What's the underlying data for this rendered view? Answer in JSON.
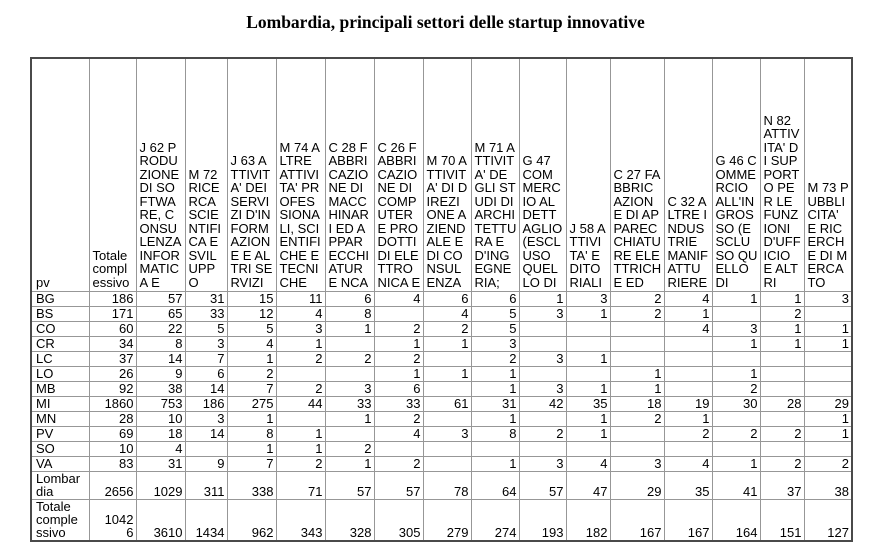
{
  "title": "Lombardia, principali settori delle startup innovative",
  "table": {
    "corner_label": "pv",
    "columns": [
      {
        "id": "totale",
        "label": "Totale complessivo"
      },
      {
        "id": "j62",
        "label": "J 62 PRODUZIONE DI SOFTWARE, CONSULENZA INFORMATICA E"
      },
      {
        "id": "m72",
        "label": "M 72 RICERCA SCIENTIFICA E SVILUPPO"
      },
      {
        "id": "j63",
        "label": "J 63 ATTIVITA' DEI SERVIZI D'INFORMAZIONE E ALTRI SERVIZI"
      },
      {
        "id": "m74",
        "label": "M 74 ALTRE ATTIVITA' PROFESSIONALI, SCIENTIFICHE E TECNICHE"
      },
      {
        "id": "c28",
        "label": "C 28 FABBRICAZIONE DI MACCHINARI ED APPARECCHIATURE NCA"
      },
      {
        "id": "c26",
        "label": "C 26 FABBRICAZIONE DI COMPUTER E PRODOTTI DI ELETTRONICA E"
      },
      {
        "id": "m70",
        "label": "M 70 ATTIVITA' DI DIREZIONE AZIENDALE E DI CONSULENZA"
      },
      {
        "id": "m71",
        "label": "M 71 ATTIVITA' DEGLI STUDI DI ARCHITETTURA E D'INGEGNERIA;"
      },
      {
        "id": "g47",
        "label": "G 47 COMMERCIO AL DETTAGLIO (ESCLUSO QUELLO DI"
      },
      {
        "id": "j58",
        "label": "J 58 ATTIVITA' EDITORIALI"
      },
      {
        "id": "c27",
        "label": "C 27 FABBRICAZIONE DI APPARECCHIATURE ELETTRICHE ED"
      },
      {
        "id": "c32",
        "label": "C 32 ALTRE INDUSTRIE MANIFATTURIERE"
      },
      {
        "id": "g46",
        "label": "G 46 COMMERCIO ALL'INGROSSO (ESCLUSO QUELLO DI"
      },
      {
        "id": "n82",
        "label": "N 82 ATTIVITA' DI SUPPORTO PER LE FUNZIONI D'UFFICIO E ALTRI"
      },
      {
        "id": "m73",
        "label": "M 73 PUBBLICITA' E RICERCHE DI MERCATO"
      }
    ],
    "rows": [
      {
        "label": "BG",
        "values": [
          "186",
          "57",
          "31",
          "15",
          "11",
          "6",
          "4",
          "6",
          "6",
          "1",
          "3",
          "2",
          "4",
          "1",
          "1",
          "3"
        ]
      },
      {
        "label": "BS",
        "values": [
          "171",
          "65",
          "33",
          "12",
          "4",
          "8",
          "",
          "4",
          "5",
          "3",
          "1",
          "2",
          "1",
          "",
          "2",
          ""
        ]
      },
      {
        "label": "CO",
        "values": [
          "60",
          "22",
          "5",
          "5",
          "3",
          "1",
          "2",
          "2",
          "5",
          "",
          "",
          "",
          "4",
          "3",
          "1",
          "1"
        ]
      },
      {
        "label": "CR",
        "values": [
          "34",
          "8",
          "3",
          "4",
          "1",
          "",
          "1",
          "1",
          "3",
          "",
          "",
          "",
          "",
          "1",
          "1",
          "1"
        ]
      },
      {
        "label": "LC",
        "values": [
          "37",
          "14",
          "7",
          "1",
          "2",
          "2",
          "2",
          "",
          "2",
          "3",
          "1",
          "",
          "",
          "",
          "",
          ""
        ]
      },
      {
        "label": "LO",
        "values": [
          "26",
          "9",
          "6",
          "2",
          "",
          "",
          "1",
          "1",
          "1",
          "",
          "",
          "1",
          "",
          "1",
          "",
          ""
        ]
      },
      {
        "label": "MB",
        "values": [
          "92",
          "38",
          "14",
          "7",
          "2",
          "3",
          "6",
          "",
          "1",
          "3",
          "1",
          "1",
          "",
          "2",
          "",
          ""
        ]
      },
      {
        "label": "MI",
        "values": [
          "1860",
          "753",
          "186",
          "275",
          "44",
          "33",
          "33",
          "61",
          "31",
          "42",
          "35",
          "18",
          "19",
          "30",
          "28",
          "29"
        ]
      },
      {
        "label": "MN",
        "values": [
          "28",
          "10",
          "3",
          "1",
          "",
          "1",
          "2",
          "",
          "1",
          "",
          "1",
          "2",
          "1",
          "",
          "",
          "1"
        ]
      },
      {
        "label": "PV",
        "values": [
          "69",
          "18",
          "14",
          "8",
          "1",
          "",
          "4",
          "3",
          "8",
          "2",
          "1",
          "",
          "2",
          "2",
          "2",
          "1"
        ]
      },
      {
        "label": "SO",
        "values": [
          "10",
          "4",
          "",
          "1",
          "1",
          "2",
          "",
          "",
          "",
          "",
          "",
          "",
          "",
          "",
          "",
          ""
        ]
      },
      {
        "label": "VA",
        "values": [
          "83",
          "31",
          "9",
          "7",
          "2",
          "1",
          "2",
          "",
          "1",
          "3",
          "4",
          "3",
          "4",
          "1",
          "2",
          "2"
        ]
      },
      {
        "label": "Lombardia",
        "values": [
          "2656",
          "1029",
          "311",
          "338",
          "71",
          "57",
          "57",
          "78",
          "64",
          "57",
          "47",
          "29",
          "35",
          "41",
          "37",
          "38"
        ]
      },
      {
        "label": "Totale complessivo",
        "values": [
          "10426",
          "3610",
          "1434",
          "962",
          "343",
          "328",
          "305",
          "279",
          "274",
          "193",
          "182",
          "167",
          "167",
          "164",
          "151",
          "127"
        ]
      }
    ]
  }
}
